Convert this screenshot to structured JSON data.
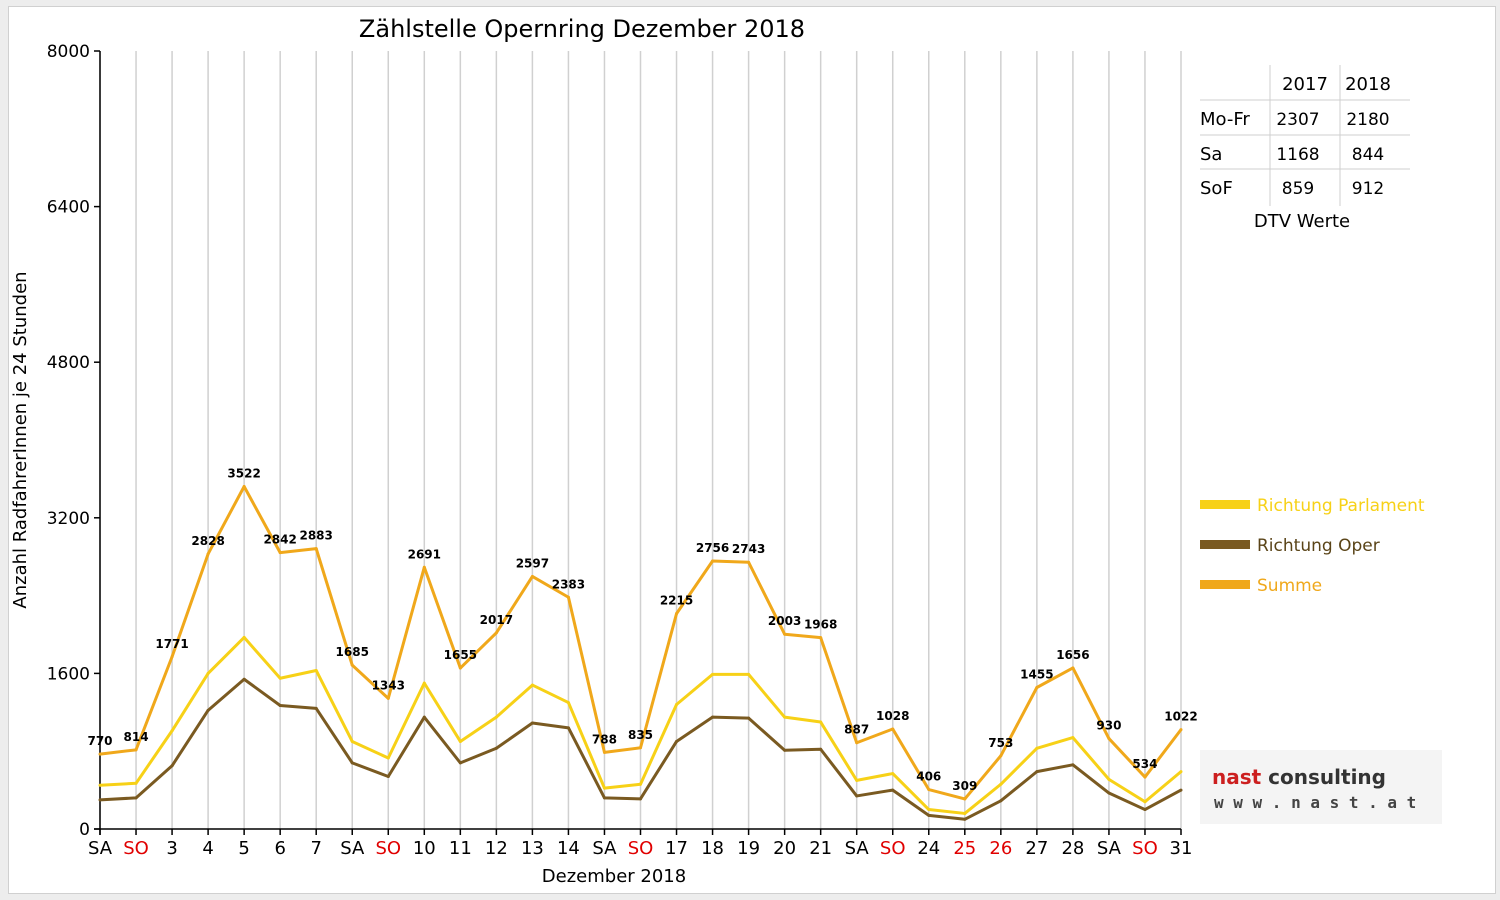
{
  "chart_data": {
    "type": "line",
    "title": "Zählstelle Opernring Dezember 2018",
    "xlabel": "Dezember 2018",
    "ylabel": "Anzahl RadfahrerInnen je 24 Stunden",
    "ylim": [
      0,
      8000
    ],
    "yticks": [
      0,
      1600,
      3200,
      4800,
      6400,
      8000
    ],
    "grid": true,
    "legend_position": "right",
    "categories": [
      "SA",
      "SO",
      "3",
      "4",
      "5",
      "6",
      "7",
      "SA",
      "SO",
      "10",
      "11",
      "12",
      "13",
      "14",
      "SA",
      "SO",
      "17",
      "18",
      "19",
      "20",
      "21",
      "SA",
      "SO",
      "24",
      "25",
      "26",
      "27",
      "28",
      "SA",
      "SO",
      "31"
    ],
    "red_categories": [
      1,
      8,
      15,
      22,
      24,
      25,
      29
    ],
    "series": [
      {
        "name": "Richtung Parlament",
        "color": "#f7d117",
        "values": [
          450,
          470,
          1010,
          1600,
          1970,
          1550,
          1630,
          900,
          730,
          1500,
          900,
          1150,
          1480,
          1300,
          420,
          460,
          1280,
          1590,
          1590,
          1150,
          1100,
          500,
          570,
          200,
          160,
          460,
          830,
          940,
          510,
          280,
          590
        ]
      },
      {
        "name": "Richtung Oper",
        "color": "#7a5a21",
        "values": [
          300,
          320,
          650,
          1220,
          1540,
          1270,
          1240,
          680,
          540,
          1150,
          680,
          830,
          1090,
          1040,
          320,
          310,
          900,
          1150,
          1140,
          810,
          820,
          340,
          400,
          140,
          100,
          290,
          590,
          660,
          370,
          200,
          400
        ]
      },
      {
        "name": "Summe",
        "color": "#f0a81b",
        "values": [
          770,
          814,
          1771,
          2828,
          3522,
          2842,
          2883,
          1685,
          1343,
          2691,
          1655,
          2017,
          2597,
          2383,
          788,
          835,
          2215,
          2756,
          2743,
          2003,
          1968,
          887,
          1028,
          406,
          309,
          753,
          1455,
          1656,
          930,
          534,
          1022
        ],
        "labels": [
          "770",
          "814",
          "1771",
          "2828",
          "3522",
          "2842",
          "2883",
          "1685",
          "1343",
          "2691",
          "1655",
          "2017",
          "2597",
          "2383",
          "788",
          "835",
          "2215",
          "2756",
          "2743",
          "2003",
          "1968",
          "887",
          "1028",
          "406",
          "309",
          "753",
          "1455",
          "1656",
          "930",
          "534",
          "1022"
        ]
      }
    ]
  },
  "dtv_table": {
    "headers": [
      "",
      "2017",
      "2018"
    ],
    "rows": [
      {
        "label": "Mo-Fr",
        "v2017": "2307",
        "v2018": "2180"
      },
      {
        "label": "Sa",
        "v2017": "1168",
        "v2018": "844"
      },
      {
        "label": "SoF",
        "v2017": "859",
        "v2018": "912"
      }
    ],
    "caption": "DTV Werte"
  },
  "logo": {
    "word1": "nast",
    "word2": "consulting",
    "url": "w w w . n a s t . a t",
    "word1_color": "#cc1f1f",
    "word2_color": "#333333"
  },
  "colors": {
    "weekend_red": "#e00000",
    "grid": "#d0d0d0"
  }
}
